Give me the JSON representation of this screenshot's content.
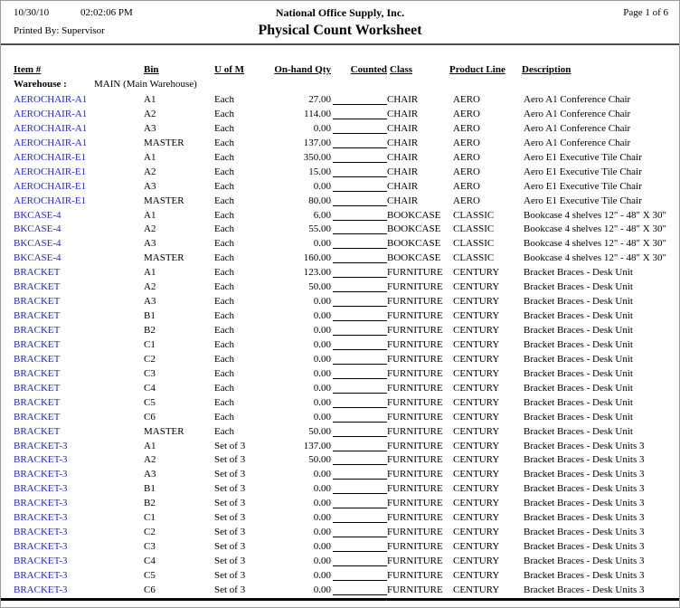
{
  "colors": {
    "link_blue": "#2222cc"
  },
  "header": {
    "date": "10/30/10",
    "time": "02:02:06 PM",
    "company": "National Office Supply, Inc.",
    "page": "Page 1 of 6",
    "printed_by": "Printed By: Supervisor",
    "title": "Physical Count Worksheet"
  },
  "columns": {
    "item": "Item #",
    "bin": "Bin",
    "uofm": "U of M",
    "qty": "On-hand Qty",
    "counted": "Counted",
    "cls": "Class",
    "product": "Product Line",
    "desc": "Description"
  },
  "warehouse": {
    "label": "Warehouse :",
    "value": "MAIN (Main Warehouse)"
  },
  "rows": [
    {
      "item": "AEROCHAIR-A1",
      "bin": "A1",
      "uofm": "Each",
      "qty": "27.00",
      "cls": "CHAIR",
      "product": "AERO",
      "desc": "Aero A1 Conference Chair"
    },
    {
      "item": "AEROCHAIR-A1",
      "bin": "A2",
      "uofm": "Each",
      "qty": "114.00",
      "cls": "CHAIR",
      "product": "AERO",
      "desc": "Aero A1 Conference Chair"
    },
    {
      "item": "AEROCHAIR-A1",
      "bin": "A3",
      "uofm": "Each",
      "qty": "0.00",
      "cls": "CHAIR",
      "product": "AERO",
      "desc": "Aero A1 Conference Chair"
    },
    {
      "item": "AEROCHAIR-A1",
      "bin": "MASTER",
      "uofm": "Each",
      "qty": "137.00",
      "cls": "CHAIR",
      "product": "AERO",
      "desc": "Aero A1 Conference Chair"
    },
    {
      "item": "AEROCHAIR-E1",
      "bin": "A1",
      "uofm": "Each",
      "qty": "350.00",
      "cls": "CHAIR",
      "product": "AERO",
      "desc": "Aero E1 Executive Tile Chair"
    },
    {
      "item": "AEROCHAIR-E1",
      "bin": "A2",
      "uofm": "Each",
      "qty": "15.00",
      "cls": "CHAIR",
      "product": "AERO",
      "desc": "Aero E1 Executive Tile Chair"
    },
    {
      "item": "AEROCHAIR-E1",
      "bin": "A3",
      "uofm": "Each",
      "qty": "0.00",
      "cls": "CHAIR",
      "product": "AERO",
      "desc": "Aero E1 Executive Tile Chair"
    },
    {
      "item": "AEROCHAIR-E1",
      "bin": "MASTER",
      "uofm": "Each",
      "qty": "80.00",
      "cls": "CHAIR",
      "product": "AERO",
      "desc": "Aero E1 Executive Tile Chair"
    },
    {
      "item": "BKCASE-4",
      "bin": "A1",
      "uofm": "Each",
      "qty": "6.00",
      "cls": "BOOKCASE",
      "product": "CLASSIC",
      "desc": "Bookcase 4 shelves 12\" - 48\" X 30\""
    },
    {
      "item": "BKCASE-4",
      "bin": "A2",
      "uofm": "Each",
      "qty": "55.00",
      "cls": "BOOKCASE",
      "product": "CLASSIC",
      "desc": "Bookcase 4 shelves 12\" - 48\" X 30\""
    },
    {
      "item": "BKCASE-4",
      "bin": "A3",
      "uofm": "Each",
      "qty": "0.00",
      "cls": "BOOKCASE",
      "product": "CLASSIC",
      "desc": "Bookcase 4 shelves 12\" - 48\" X 30\""
    },
    {
      "item": "BKCASE-4",
      "bin": "MASTER",
      "uofm": "Each",
      "qty": "160.00",
      "cls": "BOOKCASE",
      "product": "CLASSIC",
      "desc": "Bookcase 4 shelves 12\" - 48\" X 30\""
    },
    {
      "item": "BRACKET",
      "bin": "A1",
      "uofm": "Each",
      "qty": "123.00",
      "cls": "FURNITURE",
      "product": "CENTURY",
      "desc": "Bracket Braces - Desk Unit"
    },
    {
      "item": "BRACKET",
      "bin": "A2",
      "uofm": "Each",
      "qty": "50.00",
      "cls": "FURNITURE",
      "product": "CENTURY",
      "desc": "Bracket Braces - Desk Unit"
    },
    {
      "item": "BRACKET",
      "bin": "A3",
      "uofm": "Each",
      "qty": "0.00",
      "cls": "FURNITURE",
      "product": "CENTURY",
      "desc": "Bracket Braces - Desk Unit"
    },
    {
      "item": "BRACKET",
      "bin": "B1",
      "uofm": "Each",
      "qty": "0.00",
      "cls": "FURNITURE",
      "product": "CENTURY",
      "desc": "Bracket Braces - Desk Unit"
    },
    {
      "item": "BRACKET",
      "bin": "B2",
      "uofm": "Each",
      "qty": "0.00",
      "cls": "FURNITURE",
      "product": "CENTURY",
      "desc": "Bracket Braces - Desk Unit"
    },
    {
      "item": "BRACKET",
      "bin": "C1",
      "uofm": "Each",
      "qty": "0.00",
      "cls": "FURNITURE",
      "product": "CENTURY",
      "desc": "Bracket Braces - Desk Unit"
    },
    {
      "item": "BRACKET",
      "bin": "C2",
      "uofm": "Each",
      "qty": "0.00",
      "cls": "FURNITURE",
      "product": "CENTURY",
      "desc": "Bracket Braces - Desk Unit"
    },
    {
      "item": "BRACKET",
      "bin": "C3",
      "uofm": "Each",
      "qty": "0.00",
      "cls": "FURNITURE",
      "product": "CENTURY",
      "desc": "Bracket Braces - Desk Unit"
    },
    {
      "item": "BRACKET",
      "bin": "C4",
      "uofm": "Each",
      "qty": "0.00",
      "cls": "FURNITURE",
      "product": "CENTURY",
      "desc": "Bracket Braces - Desk Unit"
    },
    {
      "item": "BRACKET",
      "bin": "C5",
      "uofm": "Each",
      "qty": "0.00",
      "cls": "FURNITURE",
      "product": "CENTURY",
      "desc": "Bracket Braces - Desk Unit"
    },
    {
      "item": "BRACKET",
      "bin": "C6",
      "uofm": "Each",
      "qty": "0.00",
      "cls": "FURNITURE",
      "product": "CENTURY",
      "desc": "Bracket Braces - Desk Unit"
    },
    {
      "item": "BRACKET",
      "bin": "MASTER",
      "uofm": "Each",
      "qty": "50.00",
      "cls": "FURNITURE",
      "product": "CENTURY",
      "desc": "Bracket Braces - Desk Unit"
    },
    {
      "item": "BRACKET-3",
      "bin": "A1",
      "uofm": "Set of 3",
      "qty": "137.00",
      "cls": "FURNITURE",
      "product": "CENTURY",
      "desc": "Bracket Braces - Desk Units 3"
    },
    {
      "item": "BRACKET-3",
      "bin": "A2",
      "uofm": "Set of 3",
      "qty": "50.00",
      "cls": "FURNITURE",
      "product": "CENTURY",
      "desc": "Bracket Braces - Desk Units 3"
    },
    {
      "item": "BRACKET-3",
      "bin": "A3",
      "uofm": "Set of 3",
      "qty": "0.00",
      "cls": "FURNITURE",
      "product": "CENTURY",
      "desc": "Bracket Braces - Desk Units 3"
    },
    {
      "item": "BRACKET-3",
      "bin": "B1",
      "uofm": "Set of 3",
      "qty": "0.00",
      "cls": "FURNITURE",
      "product": "CENTURY",
      "desc": "Bracket Braces - Desk Units 3"
    },
    {
      "item": "BRACKET-3",
      "bin": "B2",
      "uofm": "Set of 3",
      "qty": "0.00",
      "cls": "FURNITURE",
      "product": "CENTURY",
      "desc": "Bracket Braces - Desk Units 3"
    },
    {
      "item": "BRACKET-3",
      "bin": "C1",
      "uofm": "Set of 3",
      "qty": "0.00",
      "cls": "FURNITURE",
      "product": "CENTURY",
      "desc": "Bracket Braces - Desk Units 3"
    },
    {
      "item": "BRACKET-3",
      "bin": "C2",
      "uofm": "Set of 3",
      "qty": "0.00",
      "cls": "FURNITURE",
      "product": "CENTURY",
      "desc": "Bracket Braces - Desk Units 3"
    },
    {
      "item": "BRACKET-3",
      "bin": "C3",
      "uofm": "Set of 3",
      "qty": "0.00",
      "cls": "FURNITURE",
      "product": "CENTURY",
      "desc": "Bracket Braces - Desk Units 3"
    },
    {
      "item": "BRACKET-3",
      "bin": "C4",
      "uofm": "Set of 3",
      "qty": "0.00",
      "cls": "FURNITURE",
      "product": "CENTURY",
      "desc": "Bracket Braces - Desk Units 3"
    },
    {
      "item": "BRACKET-3",
      "bin": "C5",
      "uofm": "Set of 3",
      "qty": "0.00",
      "cls": "FURNITURE",
      "product": "CENTURY",
      "desc": "Bracket Braces - Desk Units 3"
    },
    {
      "item": "BRACKET-3",
      "bin": "C6",
      "uofm": "Set of 3",
      "qty": "0.00",
      "cls": "FURNITURE",
      "product": "CENTURY",
      "desc": "Bracket Braces - Desk Units 3"
    }
  ]
}
